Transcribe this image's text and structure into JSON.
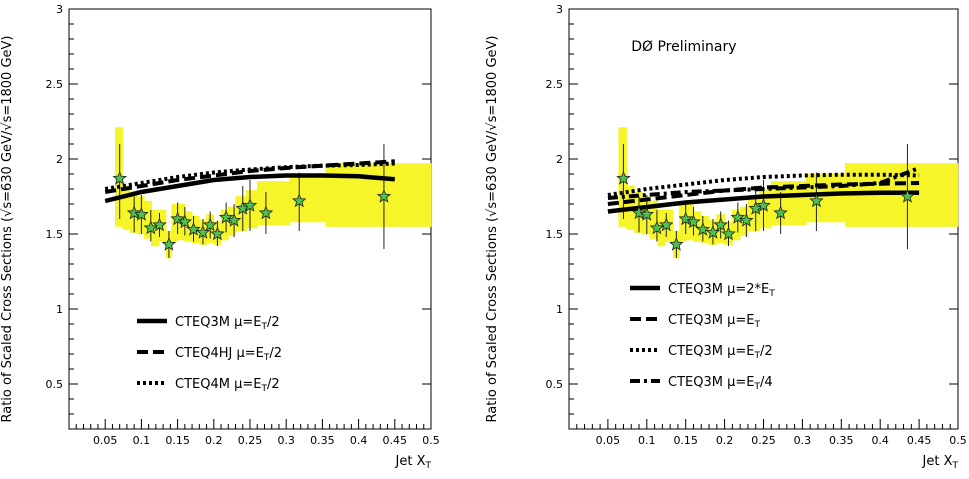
{
  "colors": {
    "band": "#f5f52a",
    "marker": "#4ec24e",
    "marker_edge": "#222222",
    "curve": "#000000"
  },
  "chart_data": [
    {
      "type": "line",
      "title": "",
      "annotation": "",
      "xlabel": "Jet X",
      "xlabel_sub": "T",
      "ylabel": "Ratio of Scaled Cross Sections (√s=630 GeV/√s=1800 GeV)",
      "xlim": [
        0,
        0.5
      ],
      "ylim": [
        0.2,
        3
      ],
      "xticks": [
        "0.05",
        "0.1",
        "0.15",
        "0.2",
        "0.25",
        "0.3",
        "0.35",
        "0.4",
        "0.45",
        "0.5"
      ],
      "yticks": [
        "0.5",
        "1",
        "1.5",
        "2",
        "2.5",
        "3"
      ],
      "legend": [
        {
          "prefix": "CTEQ3M ",
          "mu": "μ=E",
          "sub": "T",
          "suffix": "/2",
          "style": "solid"
        },
        {
          "prefix": "CTEQ4HJ ",
          "mu": "μ=E",
          "sub": "T",
          "suffix": "/2",
          "style": "dash"
        },
        {
          "prefix": "CTEQ4M ",
          "mu": "μ=E",
          "sub": "T",
          "suffix": "/2",
          "style": "dot"
        }
      ],
      "band": [
        [
          0.064,
          0.074,
          1.55,
          2.21
        ],
        [
          0.074,
          0.084,
          1.53,
          1.82
        ],
        [
          0.084,
          0.094,
          1.51,
          1.78
        ],
        [
          0.094,
          0.104,
          1.5,
          1.75
        ],
        [
          0.104,
          0.114,
          1.47,
          1.72
        ],
        [
          0.114,
          0.124,
          1.42,
          1.66
        ],
        [
          0.124,
          0.134,
          1.45,
          1.66
        ],
        [
          0.134,
          0.142,
          1.34,
          1.52
        ],
        [
          0.142,
          0.15,
          1.45,
          1.7
        ],
        [
          0.15,
          0.16,
          1.46,
          1.7
        ],
        [
          0.16,
          0.17,
          1.45,
          1.65
        ],
        [
          0.17,
          0.18,
          1.44,
          1.62
        ],
        [
          0.18,
          0.19,
          1.43,
          1.59
        ],
        [
          0.19,
          0.2,
          1.44,
          1.63
        ],
        [
          0.2,
          0.21,
          1.43,
          1.58
        ],
        [
          0.21,
          0.22,
          1.46,
          1.66
        ],
        [
          0.22,
          0.23,
          1.49,
          1.68
        ],
        [
          0.23,
          0.245,
          1.52,
          1.75
        ],
        [
          0.245,
          0.26,
          1.54,
          1.79
        ],
        [
          0.26,
          0.305,
          1.56,
          1.85
        ],
        [
          0.305,
          0.355,
          1.58,
          1.9
        ],
        [
          0.355,
          0.5,
          1.55,
          1.97
        ]
      ],
      "points": [
        {
          "x": 0.07,
          "y": 1.87,
          "lo": 1.6,
          "hi": 2.1
        },
        {
          "x": 0.09,
          "y": 1.64,
          "lo": 1.51,
          "hi": 1.75
        },
        {
          "x": 0.1,
          "y": 1.63,
          "lo": 1.5,
          "hi": 1.76
        },
        {
          "x": 0.113,
          "y": 1.54,
          "lo": 1.45,
          "hi": 1.66
        },
        {
          "x": 0.125,
          "y": 1.56,
          "lo": 1.48,
          "hi": 1.64
        },
        {
          "x": 0.138,
          "y": 1.43,
          "lo": 1.34,
          "hi": 1.52
        },
        {
          "x": 0.15,
          "y": 1.6,
          "lo": 1.5,
          "hi": 1.71
        },
        {
          "x": 0.16,
          "y": 1.58,
          "lo": 1.49,
          "hi": 1.68
        },
        {
          "x": 0.172,
          "y": 1.53,
          "lo": 1.45,
          "hi": 1.62
        },
        {
          "x": 0.185,
          "y": 1.51,
          "lo": 1.43,
          "hi": 1.6
        },
        {
          "x": 0.195,
          "y": 1.56,
          "lo": 1.47,
          "hi": 1.65
        },
        {
          "x": 0.205,
          "y": 1.5,
          "lo": 1.42,
          "hi": 1.59
        },
        {
          "x": 0.217,
          "y": 1.61,
          "lo": 1.51,
          "hi": 1.71
        },
        {
          "x": 0.228,
          "y": 1.59,
          "lo": 1.48,
          "hi": 1.7
        },
        {
          "x": 0.24,
          "y": 1.67,
          "lo": 1.52,
          "hi": 1.82
        },
        {
          "x": 0.25,
          "y": 1.69,
          "lo": 1.52,
          "hi": 1.86
        },
        {
          "x": 0.272,
          "y": 1.64,
          "lo": 1.5,
          "hi": 1.78
        },
        {
          "x": 0.318,
          "y": 1.72,
          "lo": 1.52,
          "hi": 1.91
        },
        {
          "x": 0.435,
          "y": 1.75,
          "lo": 1.4,
          "hi": 2.1
        }
      ],
      "series": [
        {
          "name": "CTEQ3M μ=ET/2",
          "style": "solid",
          "x": [
            0.05,
            0.1,
            0.15,
            0.2,
            0.25,
            0.3,
            0.35,
            0.4,
            0.45
          ],
          "y": [
            1.72,
            1.78,
            1.82,
            1.86,
            1.88,
            1.89,
            1.89,
            1.885,
            1.865
          ]
        },
        {
          "name": "CTEQ4HJ μ=ET/2",
          "style": "dash",
          "x": [
            0.05,
            0.1,
            0.15,
            0.2,
            0.25,
            0.3,
            0.35,
            0.4,
            0.45
          ],
          "y": [
            1.78,
            1.82,
            1.86,
            1.89,
            1.92,
            1.94,
            1.955,
            1.97,
            1.985
          ]
        },
        {
          "name": "CTEQ4M μ=ET/2",
          "style": "dot",
          "x": [
            0.05,
            0.1,
            0.15,
            0.2,
            0.25,
            0.3,
            0.35,
            0.4,
            0.45
          ],
          "y": [
            1.8,
            1.84,
            1.88,
            1.91,
            1.93,
            1.945,
            1.955,
            1.96,
            1.97
          ]
        }
      ]
    },
    {
      "type": "line",
      "title": "",
      "annotation": "DØ Preliminary",
      "xlabel": "Jet X",
      "xlabel_sub": "T",
      "ylabel": "Ratio of Scaled Cross Sections (√s=630 GeV/√s=1800 GeV)",
      "xlim": [
        0,
        0.5
      ],
      "ylim": [
        0.2,
        3
      ],
      "xticks": [
        "0.05",
        "0.1",
        "0.15",
        "0.2",
        "0.25",
        "0.3",
        "0.35",
        "0.4",
        "0.45",
        "0.5"
      ],
      "yticks": [
        "0.5",
        "1",
        "1.5",
        "2",
        "2.5",
        "3"
      ],
      "legend": [
        {
          "prefix": "CTEQ3M ",
          "mu": "μ=2*E",
          "sub": "T",
          "suffix": "",
          "style": "solid"
        },
        {
          "prefix": "CTEQ3M ",
          "mu": "μ=E",
          "sub": "T",
          "suffix": "",
          "style": "dash"
        },
        {
          "prefix": "CTEQ3M ",
          "mu": "μ=E",
          "sub": "T",
          "suffix": "/2",
          "style": "dot"
        },
        {
          "prefix": "CTEQ3M ",
          "mu": "μ=E",
          "sub": "T",
          "suffix": "/4",
          "style": "dashdot"
        }
      ],
      "band": [
        [
          0.064,
          0.074,
          1.55,
          2.21
        ],
        [
          0.074,
          0.084,
          1.53,
          1.82
        ],
        [
          0.084,
          0.094,
          1.51,
          1.78
        ],
        [
          0.094,
          0.104,
          1.5,
          1.75
        ],
        [
          0.104,
          0.114,
          1.47,
          1.72
        ],
        [
          0.114,
          0.124,
          1.42,
          1.66
        ],
        [
          0.124,
          0.134,
          1.45,
          1.66
        ],
        [
          0.134,
          0.142,
          1.34,
          1.52
        ],
        [
          0.142,
          0.15,
          1.45,
          1.7
        ],
        [
          0.15,
          0.16,
          1.46,
          1.7
        ],
        [
          0.16,
          0.17,
          1.45,
          1.65
        ],
        [
          0.17,
          0.18,
          1.44,
          1.62
        ],
        [
          0.18,
          0.19,
          1.43,
          1.59
        ],
        [
          0.19,
          0.2,
          1.44,
          1.63
        ],
        [
          0.2,
          0.21,
          1.43,
          1.58
        ],
        [
          0.21,
          0.22,
          1.46,
          1.66
        ],
        [
          0.22,
          0.23,
          1.49,
          1.68
        ],
        [
          0.23,
          0.245,
          1.52,
          1.75
        ],
        [
          0.245,
          0.26,
          1.54,
          1.79
        ],
        [
          0.26,
          0.305,
          1.56,
          1.85
        ],
        [
          0.305,
          0.355,
          1.58,
          1.9
        ],
        [
          0.355,
          0.5,
          1.55,
          1.97
        ]
      ],
      "points": [
        {
          "x": 0.07,
          "y": 1.87,
          "lo": 1.6,
          "hi": 2.1
        },
        {
          "x": 0.09,
          "y": 1.64,
          "lo": 1.51,
          "hi": 1.75
        },
        {
          "x": 0.1,
          "y": 1.63,
          "lo": 1.5,
          "hi": 1.76
        },
        {
          "x": 0.113,
          "y": 1.54,
          "lo": 1.45,
          "hi": 1.66
        },
        {
          "x": 0.125,
          "y": 1.56,
          "lo": 1.48,
          "hi": 1.64
        },
        {
          "x": 0.138,
          "y": 1.43,
          "lo": 1.34,
          "hi": 1.52
        },
        {
          "x": 0.15,
          "y": 1.6,
          "lo": 1.5,
          "hi": 1.71
        },
        {
          "x": 0.16,
          "y": 1.58,
          "lo": 1.49,
          "hi": 1.68
        },
        {
          "x": 0.172,
          "y": 1.53,
          "lo": 1.45,
          "hi": 1.62
        },
        {
          "x": 0.185,
          "y": 1.51,
          "lo": 1.43,
          "hi": 1.6
        },
        {
          "x": 0.195,
          "y": 1.56,
          "lo": 1.47,
          "hi": 1.65
        },
        {
          "x": 0.205,
          "y": 1.5,
          "lo": 1.42,
          "hi": 1.59
        },
        {
          "x": 0.217,
          "y": 1.61,
          "lo": 1.51,
          "hi": 1.71
        },
        {
          "x": 0.228,
          "y": 1.59,
          "lo": 1.48,
          "hi": 1.7
        },
        {
          "x": 0.24,
          "y": 1.67,
          "lo": 1.52,
          "hi": 1.82
        },
        {
          "x": 0.25,
          "y": 1.69,
          "lo": 1.52,
          "hi": 1.86
        },
        {
          "x": 0.272,
          "y": 1.64,
          "lo": 1.5,
          "hi": 1.78
        },
        {
          "x": 0.318,
          "y": 1.72,
          "lo": 1.52,
          "hi": 1.91
        },
        {
          "x": 0.435,
          "y": 1.75,
          "lo": 1.4,
          "hi": 2.1
        }
      ],
      "series": [
        {
          "name": "CTEQ3M μ=2*ET",
          "style": "solid",
          "x": [
            0.05,
            0.1,
            0.15,
            0.2,
            0.25,
            0.3,
            0.35,
            0.4,
            0.45
          ],
          "y": [
            1.65,
            1.68,
            1.71,
            1.73,
            1.75,
            1.76,
            1.77,
            1.775,
            1.775
          ]
        },
        {
          "name": "CTEQ3M μ=ET",
          "style": "dash",
          "x": [
            0.05,
            0.1,
            0.15,
            0.2,
            0.25,
            0.3,
            0.35,
            0.4,
            0.45
          ],
          "y": [
            1.7,
            1.73,
            1.76,
            1.79,
            1.81,
            1.82,
            1.83,
            1.835,
            1.84
          ]
        },
        {
          "name": "CTEQ3M μ=ET/2",
          "style": "dot",
          "x": [
            0.05,
            0.1,
            0.15,
            0.2,
            0.25,
            0.3,
            0.35,
            0.4,
            0.45
          ],
          "y": [
            1.76,
            1.8,
            1.83,
            1.86,
            1.88,
            1.89,
            1.895,
            1.895,
            1.89
          ]
        },
        {
          "name": "CTEQ3M μ=ET/4",
          "style": "dashdot",
          "x": [
            0.05,
            0.1,
            0.15,
            0.2,
            0.25,
            0.3,
            0.35,
            0.4,
            0.45
          ],
          "y": [
            1.74,
            1.76,
            1.78,
            1.79,
            1.8,
            1.81,
            1.82,
            1.84,
            1.94
          ]
        }
      ]
    }
  ]
}
